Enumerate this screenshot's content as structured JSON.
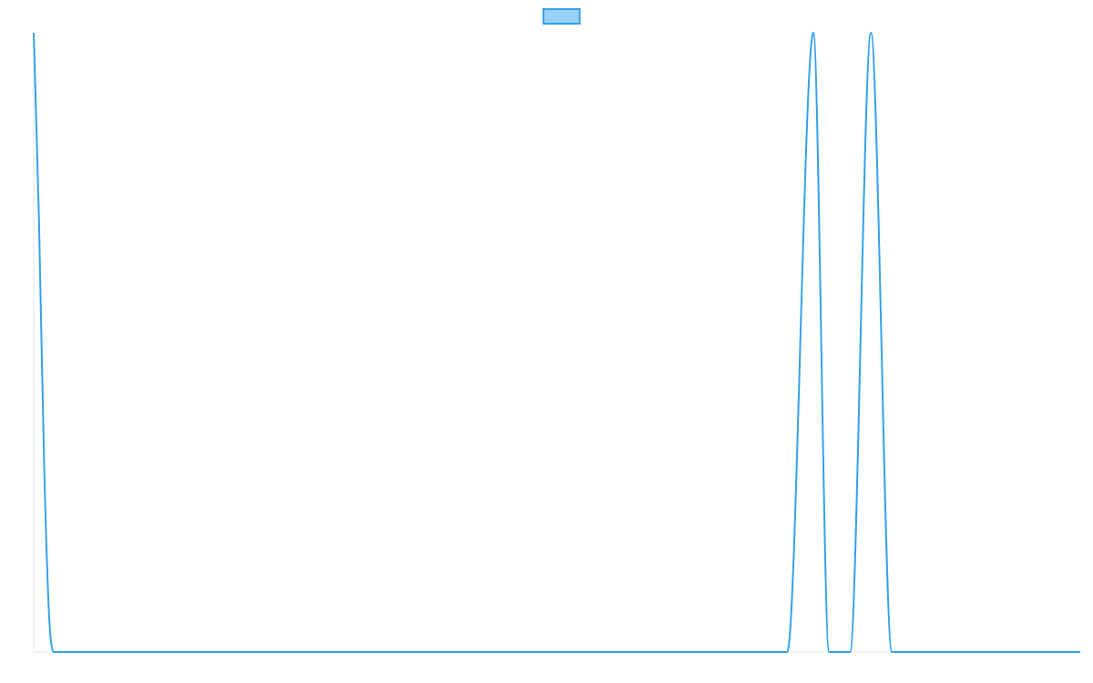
{
  "chart_data": {
    "type": "line",
    "title": "",
    "xlabel": "",
    "ylabel": "",
    "grid": false,
    "legend": {
      "position": "top-center",
      "entries": [
        {
          "label": "",
          "swatch_fill": "#9AD0F5",
          "swatch_border": "#36A2EB"
        }
      ]
    },
    "x_range": [
      0,
      100
    ],
    "y_range": [
      0,
      1
    ],
    "series": [
      {
        "color": "#36A2EB",
        "x": [
          0,
          0.5,
          1,
          1.5,
          2,
          70,
          72,
          74.5,
          76,
          78,
          80,
          82,
          84,
          86,
          100
        ],
        "y": [
          1,
          0.7,
          0.3,
          0.05,
          0,
          0,
          0,
          1,
          0,
          0,
          1,
          0,
          0,
          0,
          0
        ]
      }
    ]
  }
}
